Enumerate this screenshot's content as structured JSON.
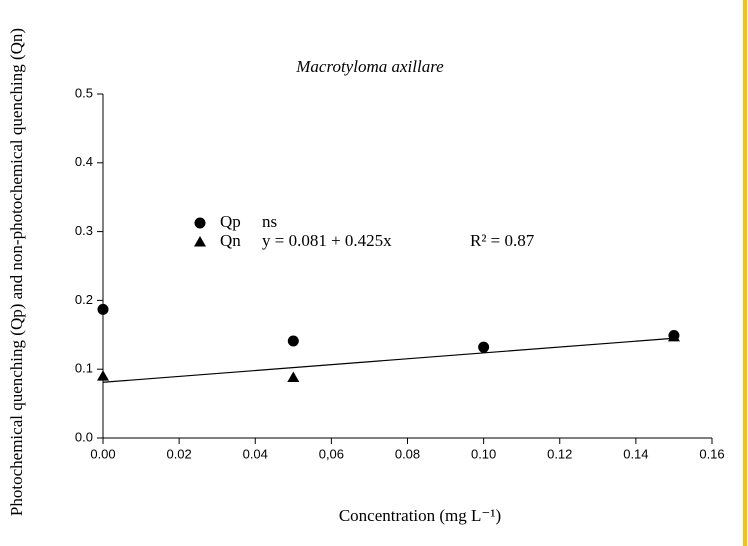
{
  "chart_data": {
    "type": "scatter",
    "title": "Macrotyloma axillare",
    "x_label": "Concentration (mg L⁻¹)",
    "y_label": "Photochemical quenching (Qp) and non-photochemical quenching (Qn)",
    "xlim": [
      0,
      0.16
    ],
    "ylim": [
      0,
      0.5
    ],
    "xticks": [
      {
        "value": 0,
        "label": "0.00"
      },
      0.02,
      0.04,
      {
        "value": 0.06,
        "label": "0,06"
      },
      0.08,
      {
        "value": 0.1,
        "label": "0.10"
      },
      0.12,
      0.14,
      0.16
    ],
    "yticks": [
      {
        "value": 0,
        "label": "0.0"
      },
      0.1,
      0.2,
      0.3,
      0.4,
      0.5
    ],
    "series": [
      {
        "name": "Qp",
        "marker": "circle",
        "color": "#000000",
        "stat": "ns",
        "x": [
          0,
          0.05,
          0.1,
          0.15
        ],
        "values": [
          0.187,
          0.141,
          0.132,
          0.149
        ]
      },
      {
        "name": "Qn",
        "marker": "triangle",
        "color": "#000000",
        "stat": "y = 0.081 + 0.425x",
        "r2": "R² = 0.87",
        "x": [
          0,
          0.05,
          0.15
        ],
        "values": [
          0.09,
          0.088,
          0.147
        ]
      }
    ],
    "fit": {
      "x": [
        0,
        0.15
      ],
      "values": [
        0.081,
        0.145
      ]
    }
  }
}
